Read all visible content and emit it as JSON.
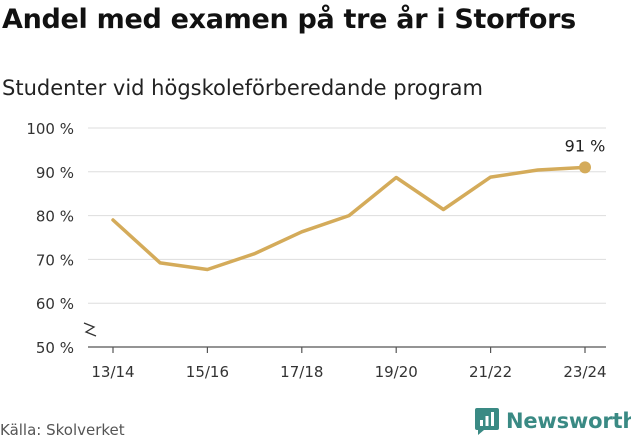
{
  "header": {
    "title": "Andel med examen på tre år i Storfors",
    "subtitle": "Studenter vid högskoleförberedande program"
  },
  "footer": {
    "source": "Källa: Skolverket",
    "brand": "Newsworthy"
  },
  "colors": {
    "line": "#d4ab5a",
    "grid": "#dddddd",
    "axis": "#555555",
    "brand": "#3a8a84"
  },
  "chart_data": {
    "type": "line",
    "x_labels": [
      "13/14",
      "",
      "15/16",
      "",
      "17/18",
      "",
      "19/20",
      "",
      "21/22",
      "",
      "23/24"
    ],
    "tick_labels_x": [
      "13/14",
      "15/16",
      "17/18",
      "19/20",
      "21/22",
      "23/24"
    ],
    "series": [
      {
        "values": [
          79,
          69.2,
          67.7,
          71.3,
          76.3,
          80,
          88.7,
          81.4,
          88.8,
          90.4,
          91
        ]
      }
    ],
    "y_ticks": [
      {
        "value": 50,
        "label": "50 %"
      },
      {
        "value": 60,
        "label": "60 %"
      },
      {
        "value": 70,
        "label": "70 %"
      },
      {
        "value": 80,
        "label": "80 %"
      },
      {
        "value": 90,
        "label": "90 %"
      },
      {
        "value": 100,
        "label": "100 %"
      }
    ],
    "ylim": [
      50,
      100
    ],
    "y_axis_break": true,
    "grid": true,
    "end_label": "91 %"
  }
}
